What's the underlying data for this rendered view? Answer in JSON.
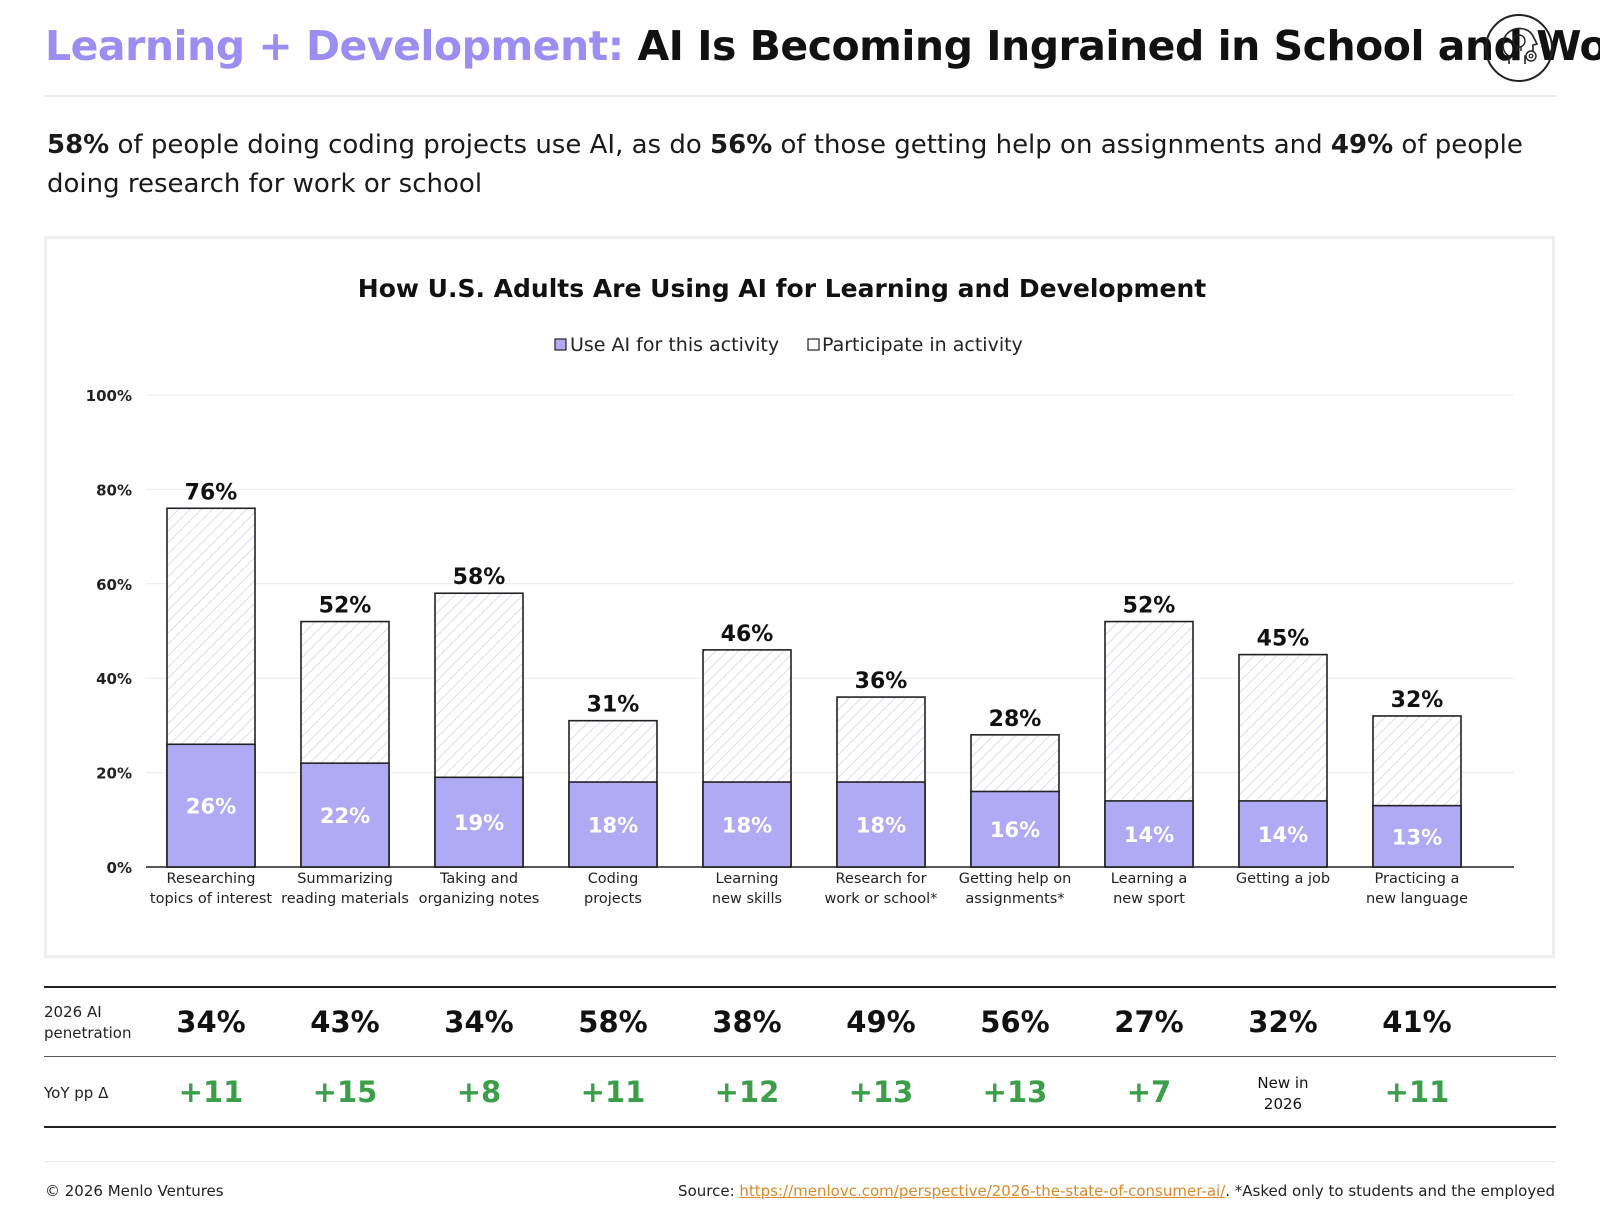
{
  "header": {
    "title_accent": "Learning + Development:",
    "title_main": "AI Is Becoming Ingrained in School and Work",
    "logo_icon": "head-lightbulb-gear-icon"
  },
  "subtitle": {
    "p1": "58%",
    "t1": " of people doing coding projects use AI, as do ",
    "p2": "56%",
    "t2": " of those getting help on assignments and ",
    "p3": "49%",
    "t3": " of people doing research for work or school"
  },
  "chart_data": {
    "type": "bar",
    "title": "How U.S. Adults Are Using AI for Learning and Development",
    "legend": [
      "Use AI for this activity",
      "Participate in activity"
    ],
    "legend_position": "top-center",
    "grid": true,
    "ylim": [
      0,
      100
    ],
    "yticks": [
      "0%",
      "20%",
      "40%",
      "60%",
      "80%",
      "100%"
    ],
    "categories": [
      [
        "Researching",
        "topics of interest"
      ],
      [
        "Summarizing",
        "reading materials"
      ],
      [
        "Taking and",
        "organizing notes"
      ],
      [
        "Coding",
        "projects"
      ],
      [
        "Learning",
        "new skills"
      ],
      [
        "Research for",
        "work or school*"
      ],
      [
        "Getting help on",
        "assignments*"
      ],
      [
        "Learning a",
        "new sport"
      ],
      [
        "Getting a job"
      ],
      [
        "Practicing a",
        "new language"
      ]
    ],
    "series": [
      {
        "name": "Use AI for this activity",
        "values": [
          26,
          22,
          19,
          18,
          18,
          18,
          16,
          14,
          14,
          13
        ],
        "color": "#b0aaf5"
      },
      {
        "name": "Participate in activity",
        "values": [
          76,
          52,
          58,
          31,
          46,
          36,
          28,
          52,
          45,
          32
        ],
        "color": "#ffffff"
      }
    ]
  },
  "table": {
    "penetration_label": [
      "2026 AI",
      "penetration"
    ],
    "penetration": [
      "34%",
      "43%",
      "34%",
      "58%",
      "38%",
      "49%",
      "56%",
      "27%",
      "32%",
      "41%"
    ],
    "yoy_label": "YoY pp Δ",
    "yoy": [
      "+11",
      "+15",
      "+8",
      "+11",
      "+12",
      "+13",
      "+13",
      "+7",
      "",
      "+11"
    ],
    "yoy_note": [
      "New in",
      "2026"
    ],
    "yoy_color": "#3b9f4a"
  },
  "footer": {
    "copyright": "© 2026 Menlo Ventures",
    "source_prefix": "Source: ",
    "source_link": "https://menlovc.com/perspective/2026-the-state-of-consumer-ai/",
    "source_suffix": ". *Asked only to students and the employed"
  }
}
